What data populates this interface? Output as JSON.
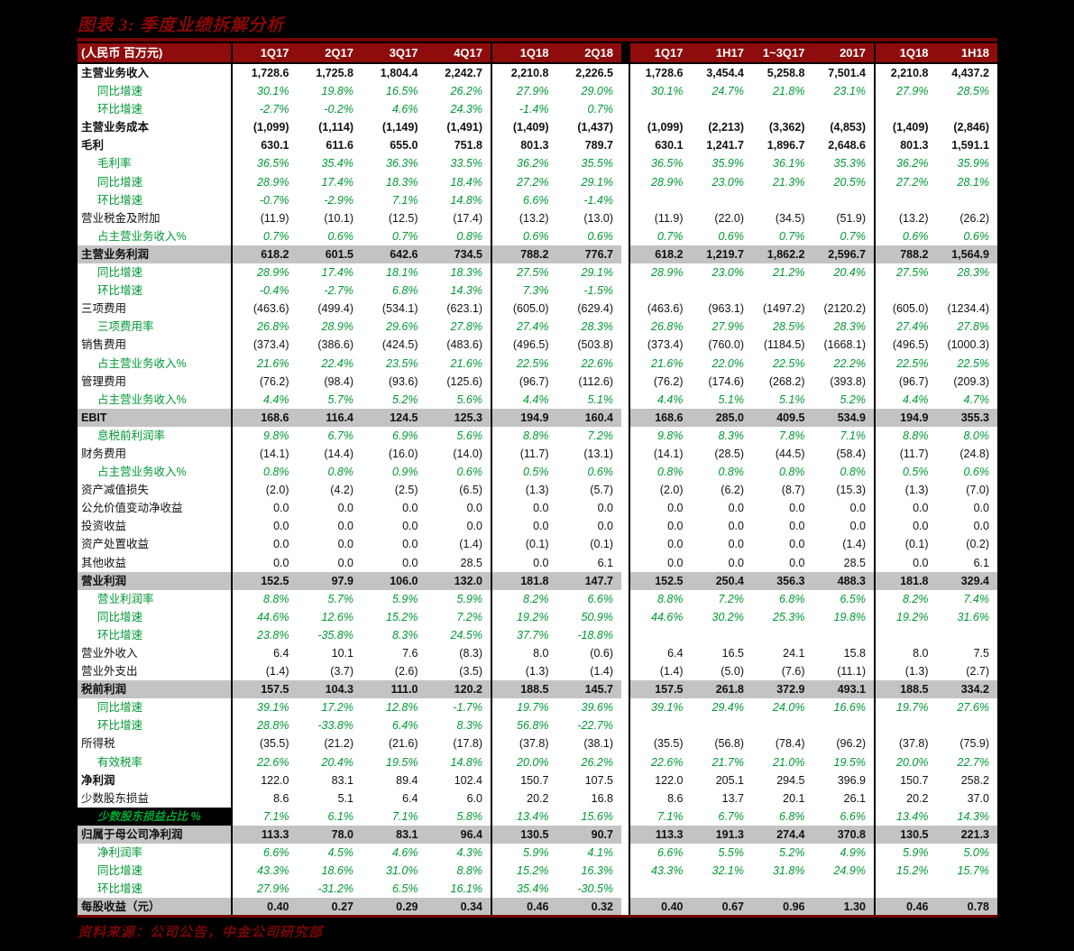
{
  "figure": {
    "title": "图表 3: 季度业绩拆解分析",
    "unit_label": "(人民币 百万元)",
    "source": "资料来源：公司公告，中金公司研究部"
  },
  "colors": {
    "page_bg": "#000000",
    "header_bg": "#8e0c0c",
    "title_red": "#8a0606",
    "rule_red": "#720202",
    "value_green": "#009933",
    "highlight_gray": "#c3c3c3",
    "table_bg": "#ffffff"
  },
  "chart_data": {
    "type": "table",
    "title": "图表 3: 季度业绩拆解分析",
    "unit": "人民币 百万元",
    "quarterly_columns": [
      "1Q17",
      "2Q17",
      "3Q17",
      "4Q17",
      "1Q18",
      "2Q18"
    ],
    "cumulative_columns": [
      "1Q17",
      "1H17",
      "1~3Q17",
      "2017",
      "1Q18",
      "1H18"
    ],
    "rows": [
      {
        "label": "主营业务收入",
        "style": "bold",
        "quarterly": [
          "1,728.6",
          "1,725.8",
          "1,804.4",
          "2,242.7",
          "2,210.8",
          "2,226.5"
        ],
        "cumulative": [
          "1,728.6",
          "3,454.4",
          "5,258.8",
          "7,501.4",
          "2,210.8",
          "4,437.2"
        ]
      },
      {
        "label": "同比增速",
        "style": "green",
        "quarterly": [
          "30.1%",
          "19.8%",
          "16.5%",
          "26.2%",
          "27.9%",
          "29.0%"
        ],
        "cumulative": [
          "30.1%",
          "24.7%",
          "21.8%",
          "23.1%",
          "27.9%",
          "28.5%"
        ]
      },
      {
        "label": "环比增速",
        "style": "green",
        "quarterly": [
          "-2.7%",
          "-0.2%",
          "4.6%",
          "24.3%",
          "-1.4%",
          "0.7%"
        ],
        "cumulative": [
          "",
          "",
          "",
          "",
          "",
          ""
        ]
      },
      {
        "label": "主营业务成本",
        "style": "bold",
        "quarterly": [
          "(1,099)",
          "(1,114)",
          "(1,149)",
          "(1,491)",
          "(1,409)",
          "(1,437)"
        ],
        "cumulative": [
          "(1,099)",
          "(2,213)",
          "(3,362)",
          "(4,853)",
          "(1,409)",
          "(2,846)"
        ]
      },
      {
        "label": "毛利",
        "style": "bold",
        "quarterly": [
          "630.1",
          "611.6",
          "655.0",
          "751.8",
          "801.3",
          "789.7"
        ],
        "cumulative": [
          "630.1",
          "1,241.7",
          "1,896.7",
          "2,648.6",
          "801.3",
          "1,591.1"
        ]
      },
      {
        "label": "毛利率",
        "style": "green",
        "quarterly": [
          "36.5%",
          "35.4%",
          "36.3%",
          "33.5%",
          "36.2%",
          "35.5%"
        ],
        "cumulative": [
          "36.5%",
          "35.9%",
          "36.1%",
          "35.3%",
          "36.2%",
          "35.9%"
        ]
      },
      {
        "label": "同比增速",
        "style": "green",
        "quarterly": [
          "28.9%",
          "17.4%",
          "18.3%",
          "18.4%",
          "27.2%",
          "29.1%"
        ],
        "cumulative": [
          "28.9%",
          "23.0%",
          "21.3%",
          "20.5%",
          "27.2%",
          "28.1%"
        ]
      },
      {
        "label": "环比增速",
        "style": "green",
        "quarterly": [
          "-0.7%",
          "-2.9%",
          "7.1%",
          "14.8%",
          "6.6%",
          "-1.4%"
        ],
        "cumulative": [
          "",
          "",
          "",
          "",
          "",
          ""
        ]
      },
      {
        "label": "营业税金及附加",
        "style": "plain",
        "quarterly": [
          "(11.9)",
          "(10.1)",
          "(12.5)",
          "(17.4)",
          "(13.2)",
          "(13.0)"
        ],
        "cumulative": [
          "(11.9)",
          "(22.0)",
          "(34.5)",
          "(51.9)",
          "(13.2)",
          "(26.2)"
        ]
      },
      {
        "label": "占主营业务收入%",
        "style": "green",
        "quarterly": [
          "0.7%",
          "0.6%",
          "0.7%",
          "0.8%",
          "0.6%",
          "0.6%"
        ],
        "cumulative": [
          "0.7%",
          "0.6%",
          "0.7%",
          "0.7%",
          "0.6%",
          "0.6%"
        ]
      },
      {
        "label": "主营业务利润",
        "style": "hl",
        "quarterly": [
          "618.2",
          "601.5",
          "642.6",
          "734.5",
          "788.2",
          "776.7"
        ],
        "cumulative": [
          "618.2",
          "1,219.7",
          "1,862.2",
          "2,596.7",
          "788.2",
          "1,564.9"
        ]
      },
      {
        "label": "同比增速",
        "style": "green",
        "quarterly": [
          "28.9%",
          "17.4%",
          "18.1%",
          "18.3%",
          "27.5%",
          "29.1%"
        ],
        "cumulative": [
          "28.9%",
          "23.0%",
          "21.2%",
          "20.4%",
          "27.5%",
          "28.3%"
        ]
      },
      {
        "label": "环比增速",
        "style": "green",
        "quarterly": [
          "-0.4%",
          "-2.7%",
          "6.8%",
          "14.3%",
          "7.3%",
          "-1.5%"
        ],
        "cumulative": [
          "",
          "",
          "",
          "",
          "",
          ""
        ]
      },
      {
        "label": "三项费用",
        "style": "plain",
        "quarterly": [
          "(463.6)",
          "(499.4)",
          "(534.1)",
          "(623.1)",
          "(605.0)",
          "(629.4)"
        ],
        "cumulative": [
          "(463.6)",
          "(963.1)",
          "(1497.2)",
          "(2120.2)",
          "(605.0)",
          "(1234.4)"
        ]
      },
      {
        "label": "三项费用率",
        "style": "green",
        "quarterly": [
          "26.8%",
          "28.9%",
          "29.6%",
          "27.8%",
          "27.4%",
          "28.3%"
        ],
        "cumulative": [
          "26.8%",
          "27.9%",
          "28.5%",
          "28.3%",
          "27.4%",
          "27.8%"
        ]
      },
      {
        "label": "销售费用",
        "style": "plain",
        "quarterly": [
          "(373.4)",
          "(386.6)",
          "(424.5)",
          "(483.6)",
          "(496.5)",
          "(503.8)"
        ],
        "cumulative": [
          "(373.4)",
          "(760.0)",
          "(1184.5)",
          "(1668.1)",
          "(496.5)",
          "(1000.3)"
        ]
      },
      {
        "label": "占主营业务收入%",
        "style": "green",
        "quarterly": [
          "21.6%",
          "22.4%",
          "23.5%",
          "21.6%",
          "22.5%",
          "22.6%"
        ],
        "cumulative": [
          "21.6%",
          "22.0%",
          "22.5%",
          "22.2%",
          "22.5%",
          "22.5%"
        ]
      },
      {
        "label": "管理费用",
        "style": "plain",
        "quarterly": [
          "(76.2)",
          "(98.4)",
          "(93.6)",
          "(125.6)",
          "(96.7)",
          "(112.6)"
        ],
        "cumulative": [
          "(76.2)",
          "(174.6)",
          "(268.2)",
          "(393.8)",
          "(96.7)",
          "(209.3)"
        ]
      },
      {
        "label": "占主营业务收入%",
        "style": "green",
        "quarterly": [
          "4.4%",
          "5.7%",
          "5.2%",
          "5.6%",
          "4.4%",
          "5.1%"
        ],
        "cumulative": [
          "4.4%",
          "5.1%",
          "5.1%",
          "5.2%",
          "4.4%",
          "4.7%"
        ]
      },
      {
        "label": "EBIT",
        "style": "hl",
        "quarterly": [
          "168.6",
          "116.4",
          "124.5",
          "125.3",
          "194.9",
          "160.4"
        ],
        "cumulative": [
          "168.6",
          "285.0",
          "409.5",
          "534.9",
          "194.9",
          "355.3"
        ]
      },
      {
        "label": "息税前利润率",
        "style": "green",
        "quarterly": [
          "9.8%",
          "6.7%",
          "6.9%",
          "5.6%",
          "8.8%",
          "7.2%"
        ],
        "cumulative": [
          "9.8%",
          "8.3%",
          "7.8%",
          "7.1%",
          "8.8%",
          "8.0%"
        ]
      },
      {
        "label": "财务费用",
        "style": "plain",
        "quarterly": [
          "(14.1)",
          "(14.4)",
          "(16.0)",
          "(14.0)",
          "(11.7)",
          "(13.1)"
        ],
        "cumulative": [
          "(14.1)",
          "(28.5)",
          "(44.5)",
          "(58.4)",
          "(11.7)",
          "(24.8)"
        ]
      },
      {
        "label": "占主营业务收入%",
        "style": "green",
        "quarterly": [
          "0.8%",
          "0.8%",
          "0.9%",
          "0.6%",
          "0.5%",
          "0.6%"
        ],
        "cumulative": [
          "0.8%",
          "0.8%",
          "0.8%",
          "0.8%",
          "0.5%",
          "0.6%"
        ]
      },
      {
        "label": "资产减值损失",
        "style": "plain",
        "quarterly": [
          "(2.0)",
          "(4.2)",
          "(2.5)",
          "(6.5)",
          "(1.3)",
          "(5.7)"
        ],
        "cumulative": [
          "(2.0)",
          "(6.2)",
          "(8.7)",
          "(15.3)",
          "(1.3)",
          "(7.0)"
        ]
      },
      {
        "label": "公允价值变动净收益",
        "style": "plain",
        "quarterly": [
          "0.0",
          "0.0",
          "0.0",
          "0.0",
          "0.0",
          "0.0"
        ],
        "cumulative": [
          "0.0",
          "0.0",
          "0.0",
          "0.0",
          "0.0",
          "0.0"
        ]
      },
      {
        "label": "投资收益",
        "style": "plain",
        "quarterly": [
          "0.0",
          "0.0",
          "0.0",
          "0.0",
          "0.0",
          "0.0"
        ],
        "cumulative": [
          "0.0",
          "0.0",
          "0.0",
          "0.0",
          "0.0",
          "0.0"
        ]
      },
      {
        "label": "资产处置收益",
        "style": "plain",
        "quarterly": [
          "0.0",
          "0.0",
          "0.0",
          "(1.4)",
          "(0.1)",
          "(0.1)"
        ],
        "cumulative": [
          "0.0",
          "0.0",
          "0.0",
          "(1.4)",
          "(0.1)",
          "(0.2)"
        ]
      },
      {
        "label": "其他收益",
        "style": "plain",
        "quarterly": [
          "0.0",
          "0.0",
          "0.0",
          "28.5",
          "0.0",
          "6.1"
        ],
        "cumulative": [
          "0.0",
          "0.0",
          "0.0",
          "28.5",
          "0.0",
          "6.1"
        ]
      },
      {
        "label": "营业利润",
        "style": "hl",
        "quarterly": [
          "152.5",
          "97.9",
          "106.0",
          "132.0",
          "181.8",
          "147.7"
        ],
        "cumulative": [
          "152.5",
          "250.4",
          "356.3",
          "488.3",
          "181.8",
          "329.4"
        ]
      },
      {
        "label": "营业利润率",
        "style": "green",
        "quarterly": [
          "8.8%",
          "5.7%",
          "5.9%",
          "5.9%",
          "8.2%",
          "6.6%"
        ],
        "cumulative": [
          "8.8%",
          "7.2%",
          "6.8%",
          "6.5%",
          "8.2%",
          "7.4%"
        ]
      },
      {
        "label": "同比增速",
        "style": "green",
        "quarterly": [
          "44.6%",
          "12.6%",
          "15.2%",
          "7.2%",
          "19.2%",
          "50.9%"
        ],
        "cumulative": [
          "44.6%",
          "30.2%",
          "25.3%",
          "19.8%",
          "19.2%",
          "31.6%"
        ]
      },
      {
        "label": "环比增速",
        "style": "green",
        "quarterly": [
          "23.8%",
          "-35.8%",
          "8.3%",
          "24.5%",
          "37.7%",
          "-18.8%"
        ],
        "cumulative": [
          "",
          "",
          "",
          "",
          "",
          ""
        ]
      },
      {
        "label": "营业外收入",
        "style": "plain",
        "quarterly": [
          "6.4",
          "10.1",
          "7.6",
          "(8.3)",
          "8.0",
          "(0.6)"
        ],
        "cumulative": [
          "6.4",
          "16.5",
          "24.1",
          "15.8",
          "8.0",
          "7.5"
        ]
      },
      {
        "label": "营业外支出",
        "style": "plain",
        "quarterly": [
          "(1.4)",
          "(3.7)",
          "(2.6)",
          "(3.5)",
          "(1.3)",
          "(1.4)"
        ],
        "cumulative": [
          "(1.4)",
          "(5.0)",
          "(7.6)",
          "(11.1)",
          "(1.3)",
          "(2.7)"
        ]
      },
      {
        "label": "税前利润",
        "style": "hl",
        "quarterly": [
          "157.5",
          "104.3",
          "111.0",
          "120.2",
          "188.5",
          "145.7"
        ],
        "cumulative": [
          "157.5",
          "261.8",
          "372.9",
          "493.1",
          "188.5",
          "334.2"
        ]
      },
      {
        "label": "同比增速",
        "style": "green",
        "quarterly": [
          "39.1%",
          "17.2%",
          "12.8%",
          "-1.7%",
          "19.7%",
          "39.6%"
        ],
        "cumulative": [
          "39.1%",
          "29.4%",
          "24.0%",
          "16.6%",
          "19.7%",
          "27.6%"
        ]
      },
      {
        "label": "环比增速",
        "style": "green",
        "quarterly": [
          "28.8%",
          "-33.8%",
          "6.4%",
          "8.3%",
          "56.8%",
          "-22.7%"
        ],
        "cumulative": [
          "",
          "",
          "",
          "",
          "",
          ""
        ]
      },
      {
        "label": "所得税",
        "style": "plain",
        "quarterly": [
          "(35.5)",
          "(21.2)",
          "(21.6)",
          "(17.8)",
          "(37.8)",
          "(38.1)"
        ],
        "cumulative": [
          "(35.5)",
          "(56.8)",
          "(78.4)",
          "(96.2)",
          "(37.8)",
          "(75.9)"
        ]
      },
      {
        "label": "有效税率",
        "style": "green",
        "quarterly": [
          "22.6%",
          "20.4%",
          "19.5%",
          "14.8%",
          "20.0%",
          "26.2%"
        ],
        "cumulative": [
          "22.6%",
          "21.7%",
          "21.0%",
          "19.5%",
          "20.0%",
          "22.7%"
        ]
      },
      {
        "label": "净利润",
        "style": "boldlabel",
        "quarterly": [
          "122.0",
          "83.1",
          "89.4",
          "102.4",
          "150.7",
          "107.5"
        ],
        "cumulative": [
          "122.0",
          "205.1",
          "294.5",
          "396.9",
          "150.7",
          "258.2"
        ]
      },
      {
        "label": "少数股东损益",
        "style": "plain",
        "quarterly": [
          "8.6",
          "5.1",
          "6.4",
          "6.0",
          "20.2",
          "16.8"
        ],
        "cumulative": [
          "8.6",
          "13.7",
          "20.1",
          "26.1",
          "20.2",
          "37.0"
        ]
      },
      {
        "label": "少数股东损益占比 %",
        "style": "greenblack",
        "quarterly": [
          "7.1%",
          "6.1%",
          "7.1%",
          "5.8%",
          "13.4%",
          "15.6%"
        ],
        "cumulative": [
          "7.1%",
          "6.7%",
          "6.8%",
          "6.6%",
          "13.4%",
          "14.3%"
        ]
      },
      {
        "label": "归属于母公司净利润",
        "style": "hl",
        "quarterly": [
          "113.3",
          "78.0",
          "83.1",
          "96.4",
          "130.5",
          "90.7"
        ],
        "cumulative": [
          "113.3",
          "191.3",
          "274.4",
          "370.8",
          "130.5",
          "221.3"
        ]
      },
      {
        "label": "净利润率",
        "style": "green",
        "quarterly": [
          "6.6%",
          "4.5%",
          "4.6%",
          "4.3%",
          "5.9%",
          "4.1%"
        ],
        "cumulative": [
          "6.6%",
          "5.5%",
          "5.2%",
          "4.9%",
          "5.9%",
          "5.0%"
        ]
      },
      {
        "label": "同比增速",
        "style": "green",
        "quarterly": [
          "43.3%",
          "18.6%",
          "31.0%",
          "8.8%",
          "15.2%",
          "16.3%"
        ],
        "cumulative": [
          "43.3%",
          "32.1%",
          "31.8%",
          "24.9%",
          "15.2%",
          "15.7%"
        ]
      },
      {
        "label": "环比增速",
        "style": "green",
        "quarterly": [
          "27.9%",
          "-31.2%",
          "6.5%",
          "16.1%",
          "35.4%",
          "-30.5%"
        ],
        "cumulative": [
          "",
          "",
          "",
          "",
          "",
          ""
        ]
      },
      {
        "label": "每股收益（元）",
        "style": "hl",
        "quarterly": [
          "0.40",
          "0.27",
          "0.29",
          "0.34",
          "0.46",
          "0.32"
        ],
        "cumulative": [
          "0.40",
          "0.67",
          "0.96",
          "1.30",
          "0.46",
          "0.78"
        ]
      }
    ]
  }
}
